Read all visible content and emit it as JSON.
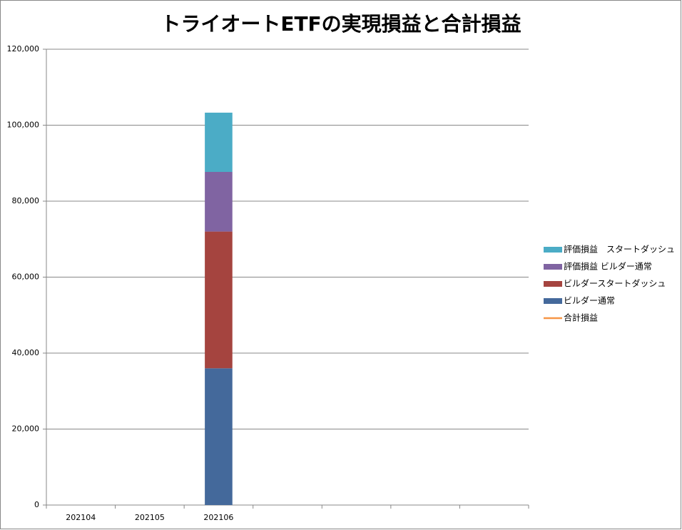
{
  "chart_data": {
    "type": "bar",
    "stacked": true,
    "title": "トライオートETFの実現損益と合計損益",
    "categories": [
      "202104",
      "202105",
      "202106",
      null,
      null,
      null,
      null
    ],
    "series": [
      {
        "name": "ビルダー通常",
        "color": "#44699b",
        "values": [
          null,
          null,
          36000,
          null,
          null,
          null,
          null
        ]
      },
      {
        "name": "ビルダースタートダッシュ",
        "color": "#a5443f",
        "values": [
          null,
          null,
          36000,
          null,
          null,
          null,
          null
        ]
      },
      {
        "name": "評価損益 ビルダー通常",
        "color": "#8064a2",
        "values": [
          null,
          null,
          15700,
          null,
          null,
          null,
          null
        ]
      },
      {
        "name": "評価損益　スタートダッシュ",
        "color": "#4bacc6",
        "values": [
          null,
          null,
          15600,
          null,
          null,
          null,
          null
        ]
      },
      {
        "name": "合計損益",
        "color": "#f79646",
        "type": "line",
        "values": [
          null,
          null,
          null,
          null,
          null,
          null,
          null
        ]
      }
    ],
    "ylim": [
      0,
      120000
    ],
    "yticks": [
      0,
      {
        "value": 20000,
        "label": "20,000"
      },
      {
        "value": 40000,
        "label": "40,000"
      },
      {
        "value": 60000,
        "label": "60,000"
      },
      {
        "value": 80000,
        "label": "80,000"
      },
      {
        "value": 100000,
        "label": "100,000"
      },
      {
        "value": 120000,
        "label": "120,000"
      }
    ],
    "grid": true,
    "legend": "right"
  }
}
